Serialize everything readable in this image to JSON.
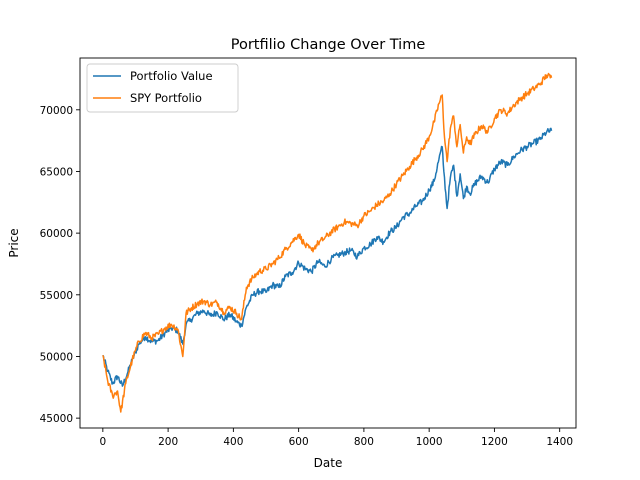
{
  "chart_data": {
    "type": "line",
    "title": "Portfilio Change Over Time",
    "xlabel": "Date",
    "ylabel": "Price",
    "xlim": [
      -70,
      1450
    ],
    "ylim": [
      44200,
      74200
    ],
    "xticks": [
      0,
      200,
      400,
      600,
      800,
      1000,
      1200,
      1400
    ],
    "yticks": [
      45000,
      50000,
      55000,
      60000,
      65000,
      70000
    ],
    "grid": false,
    "legend": "top-left",
    "series": [
      {
        "name": "Portfolio Value",
        "color": "#1f77b4",
        "points": [
          [
            0,
            50100
          ],
          [
            15,
            48800
          ],
          [
            30,
            47800
          ],
          [
            45,
            48400
          ],
          [
            60,
            47600
          ],
          [
            75,
            48600
          ],
          [
            90,
            49700
          ],
          [
            110,
            51000
          ],
          [
            130,
            51600
          ],
          [
            150,
            51200
          ],
          [
            170,
            51300
          ],
          [
            190,
            51900
          ],
          [
            210,
            52300
          ],
          [
            230,
            52100
          ],
          [
            245,
            51000
          ],
          [
            255,
            52600
          ],
          [
            270,
            53000
          ],
          [
            290,
            53500
          ],
          [
            310,
            53700
          ],
          [
            330,
            53300
          ],
          [
            350,
            53600
          ],
          [
            370,
            53000
          ],
          [
            390,
            53400
          ],
          [
            410,
            52800
          ],
          [
            425,
            52500
          ],
          [
            440,
            54000
          ],
          [
            460,
            55000
          ],
          [
            480,
            55300
          ],
          [
            500,
            55200
          ],
          [
            520,
            55800
          ],
          [
            540,
            55600
          ],
          [
            560,
            56500
          ],
          [
            580,
            56800
          ],
          [
            600,
            57600
          ],
          [
            620,
            57100
          ],
          [
            640,
            56900
          ],
          [
            660,
            57700
          ],
          [
            680,
            57300
          ],
          [
            700,
            57900
          ],
          [
            720,
            58200
          ],
          [
            740,
            58400
          ],
          [
            760,
            58600
          ],
          [
            780,
            58100
          ],
          [
            800,
            58800
          ],
          [
            820,
            59100
          ],
          [
            840,
            59700
          ],
          [
            860,
            59300
          ],
          [
            880,
            60100
          ],
          [
            900,
            60500
          ],
          [
            920,
            61300
          ],
          [
            940,
            61600
          ],
          [
            960,
            62200
          ],
          [
            980,
            62600
          ],
          [
            1000,
            63500
          ],
          [
            1015,
            64200
          ],
          [
            1030,
            66000
          ],
          [
            1040,
            67000
          ],
          [
            1045,
            65000
          ],
          [
            1055,
            62000
          ],
          [
            1065,
            64500
          ],
          [
            1075,
            65500
          ],
          [
            1085,
            63000
          ],
          [
            1095,
            64800
          ],
          [
            1105,
            62800
          ],
          [
            1115,
            63800
          ],
          [
            1125,
            63200
          ],
          [
            1140,
            64000
          ],
          [
            1160,
            64600
          ],
          [
            1180,
            64100
          ],
          [
            1200,
            65200
          ],
          [
            1220,
            65800
          ],
          [
            1240,
            65500
          ],
          [
            1260,
            66200
          ],
          [
            1280,
            66700
          ],
          [
            1300,
            67000
          ],
          [
            1320,
            67300
          ],
          [
            1340,
            67600
          ],
          [
            1360,
            68200
          ],
          [
            1375,
            68300
          ]
        ]
      },
      {
        "name": "SPY Portfolio",
        "color": "#ff7f0e",
        "points": [
          [
            0,
            50100
          ],
          [
            15,
            48000
          ],
          [
            30,
            46800
          ],
          [
            45,
            47200
          ],
          [
            55,
            45500
          ],
          [
            70,
            47800
          ],
          [
            90,
            49700
          ],
          [
            110,
            51200
          ],
          [
            130,
            51900
          ],
          [
            150,
            51500
          ],
          [
            170,
            51800
          ],
          [
            190,
            52300
          ],
          [
            210,
            52600
          ],
          [
            230,
            52200
          ],
          [
            245,
            50000
          ],
          [
            255,
            53500
          ],
          [
            270,
            53900
          ],
          [
            290,
            54300
          ],
          [
            310,
            54500
          ],
          [
            330,
            54200
          ],
          [
            350,
            54400
          ],
          [
            370,
            53600
          ],
          [
            390,
            54000
          ],
          [
            410,
            53500
          ],
          [
            425,
            53000
          ],
          [
            440,
            55600
          ],
          [
            460,
            56400
          ],
          [
            480,
            56900
          ],
          [
            500,
            57100
          ],
          [
            520,
            57500
          ],
          [
            540,
            58000
          ],
          [
            560,
            58700
          ],
          [
            580,
            59300
          ],
          [
            600,
            59900
          ],
          [
            620,
            59000
          ],
          [
            640,
            58600
          ],
          [
            660,
            59200
          ],
          [
            680,
            59600
          ],
          [
            700,
            60100
          ],
          [
            720,
            60500
          ],
          [
            740,
            60900
          ],
          [
            760,
            60800
          ],
          [
            780,
            60600
          ],
          [
            800,
            61400
          ],
          [
            820,
            61800
          ],
          [
            840,
            62300
          ],
          [
            860,
            62600
          ],
          [
            880,
            63200
          ],
          [
            900,
            64000
          ],
          [
            920,
            64700
          ],
          [
            940,
            65400
          ],
          [
            960,
            66100
          ],
          [
            980,
            66800
          ],
          [
            1000,
            67800
          ],
          [
            1015,
            69000
          ],
          [
            1030,
            70500
          ],
          [
            1040,
            71200
          ],
          [
            1045,
            68500
          ],
          [
            1055,
            65800
          ],
          [
            1065,
            68500
          ],
          [
            1075,
            69500
          ],
          [
            1085,
            67000
          ],
          [
            1095,
            68800
          ],
          [
            1105,
            66500
          ],
          [
            1115,
            67800
          ],
          [
            1125,
            67200
          ],
          [
            1140,
            68000
          ],
          [
            1160,
            68700
          ],
          [
            1180,
            68200
          ],
          [
            1200,
            69300
          ],
          [
            1220,
            70000
          ],
          [
            1240,
            69700
          ],
          [
            1260,
            70400
          ],
          [
            1280,
            70900
          ],
          [
            1300,
            71300
          ],
          [
            1320,
            71700
          ],
          [
            1340,
            72100
          ],
          [
            1360,
            72800
          ],
          [
            1375,
            72600
          ]
        ]
      }
    ]
  }
}
